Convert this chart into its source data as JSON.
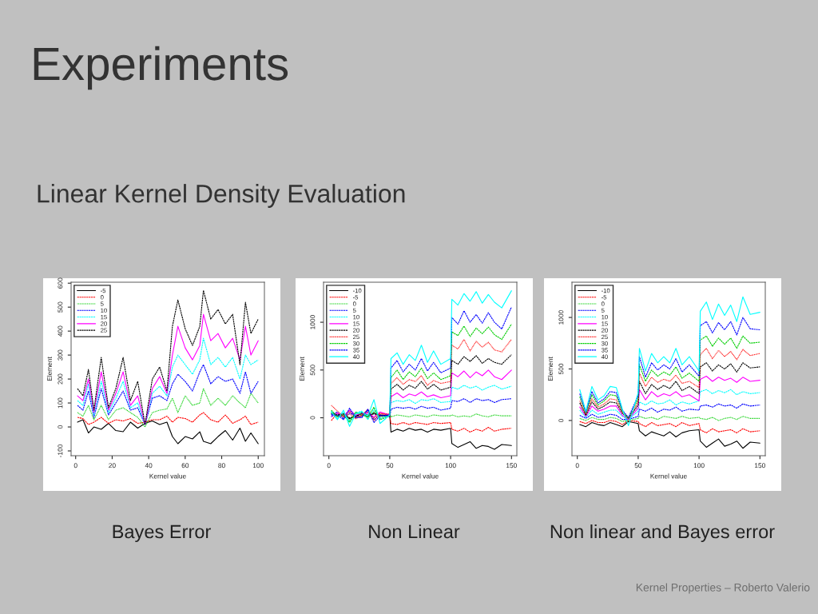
{
  "chart_data": [
    {
      "type": "line",
      "title": "Bayes Error",
      "xlabel": "Kernel value",
      "ylabel": "Element",
      "annotations": [
        "Experiments",
        "Linear Kernel Density Evaluation"
      ],
      "legend": "top left",
      "grid": false,
      "marker": "none",
      "xlim": [
        -2.5,
        103.4
      ],
      "ylim": [
        -120,
        604
      ],
      "xticks": [
        0,
        20,
        40,
        60,
        80,
        100
      ],
      "yticks": [
        -100,
        0,
        100,
        200,
        300,
        400,
        500,
        600
      ],
      "x": [
        1,
        4,
        7,
        10,
        14,
        18,
        22,
        26,
        30,
        34,
        38,
        42,
        46,
        50,
        53,
        56,
        60,
        64,
        68,
        70,
        74,
        78,
        82,
        86,
        90,
        93,
        96,
        100
      ],
      "series": [
        {
          "name": "-5",
          "color": "#000000",
          "line_style": "solid",
          "values": [
            20,
            30,
            -25,
            0,
            -10,
            15,
            -15,
            -20,
            20,
            -5,
            15,
            25,
            10,
            20,
            -40,
            -70,
            -40,
            -50,
            -20,
            -60,
            -70,
            -40,
            -15,
            -55,
            -5,
            -60,
            -25,
            -70
          ]
        },
        {
          "name": "0",
          "color": "#ff0000",
          "line_style": "dashed",
          "values": [
            40,
            35,
            10,
            20,
            40,
            15,
            30,
            25,
            35,
            15,
            20,
            30,
            30,
            45,
            20,
            40,
            35,
            20,
            50,
            60,
            30,
            20,
            50,
            15,
            30,
            45,
            10,
            20
          ]
        },
        {
          "name": "5",
          "color": "#00cd00",
          "line_style": "dotted",
          "values": [
            60,
            45,
            90,
            30,
            90,
            30,
            70,
            80,
            60,
            40,
            0,
            60,
            70,
            75,
            120,
            60,
            130,
            90,
            100,
            160,
            90,
            120,
            90,
            130,
            100,
            80,
            140,
            100
          ]
        },
        {
          "name": "10",
          "color": "#0000ff",
          "line_style": "dashed",
          "values": [
            90,
            70,
            150,
            40,
            160,
            50,
            100,
            150,
            70,
            80,
            10,
            120,
            130,
            110,
            180,
            220,
            190,
            150,
            230,
            260,
            180,
            210,
            190,
            200,
            140,
            230,
            140,
            190
          ]
        },
        {
          "name": "15",
          "color": "#00ffff",
          "line_style": "dashed",
          "values": [
            110,
            90,
            180,
            50,
            190,
            60,
            120,
            190,
            80,
            100,
            10,
            140,
            170,
            130,
            250,
            300,
            260,
            220,
            280,
            370,
            260,
            290,
            250,
            290,
            200,
            300,
            260,
            280
          ]
        },
        {
          "name": "20",
          "color": "#ff00ff",
          "line_style": "solid",
          "values": [
            130,
            110,
            200,
            60,
            230,
            70,
            140,
            230,
            90,
            130,
            10,
            160,
            210,
            140,
            300,
            420,
            330,
            280,
            340,
            470,
            360,
            390,
            330,
            370,
            280,
            420,
            300,
            360
          ]
        },
        {
          "name": "25",
          "color": "#000000",
          "line_style": "dashed",
          "values": [
            160,
            130,
            240,
            70,
            290,
            80,
            160,
            290,
            110,
            190,
            10,
            200,
            250,
            150,
            420,
            530,
            410,
            340,
            420,
            570,
            450,
            490,
            430,
            470,
            260,
            520,
            390,
            450
          ]
        }
      ]
    },
    {
      "type": "line",
      "title": "Non Linear",
      "xlabel": "Kernel value",
      "ylabel": "Element",
      "legend": "top left",
      "grid": false,
      "marker": "none",
      "xlim": [
        -4.4,
        154.4
      ],
      "ylim": [
        -397,
        1419
      ],
      "xticks": [
        0,
        50,
        100,
        150
      ],
      "yticks": [
        0,
        500,
        1000
      ],
      "x": [
        2,
        7,
        12,
        17,
        22,
        27,
        32,
        37,
        42,
        50,
        51,
        56,
        61,
        66,
        71,
        76,
        81,
        86,
        92,
        100,
        101,
        106,
        111,
        116,
        121,
        126,
        131,
        136,
        142,
        150
      ],
      "series": [
        {
          "name": "-10",
          "color": "#000000",
          "line_style": "solid",
          "values": [
            40,
            20,
            30,
            -10,
            20,
            40,
            10,
            50,
            20,
            30,
            -150,
            -120,
            -140,
            -110,
            -130,
            -120,
            -150,
            -120,
            -130,
            -110,
            -270,
            -310,
            -280,
            -250,
            -320,
            -290,
            -300,
            -330,
            -280,
            -290
          ]
        },
        {
          "name": "-5",
          "color": "#ff0000",
          "line_style": "dashed",
          "values": [
            -30,
            50,
            10,
            70,
            0,
            30,
            60,
            0,
            50,
            20,
            -60,
            -70,
            -50,
            -70,
            -50,
            -60,
            -70,
            -50,
            -60,
            -50,
            -120,
            -140,
            -110,
            -150,
            -120,
            -140,
            -100,
            -140,
            -120,
            -110
          ]
        },
        {
          "name": "0",
          "color": "#00cd00",
          "line_style": "dotted",
          "values": [
            60,
            0,
            50,
            -30,
            40,
            60,
            -10,
            70,
            0,
            40,
            10,
            30,
            20,
            10,
            30,
            20,
            10,
            30,
            20,
            20,
            30,
            10,
            20,
            10,
            40,
            20,
            10,
            30,
            20,
            20
          ]
        },
        {
          "name": "5",
          "color": "#0000ff",
          "line_style": "dashed",
          "values": [
            30,
            60,
            -10,
            50,
            20,
            10,
            80,
            -20,
            30,
            10,
            90,
            110,
            100,
            110,
            90,
            120,
            100,
            110,
            80,
            100,
            180,
            170,
            200,
            160,
            200,
            180,
            190,
            160,
            190,
            200
          ]
        },
        {
          "name": "10",
          "color": "#00ffff",
          "line_style": "dashed",
          "values": [
            70,
            -10,
            60,
            -40,
            50,
            70,
            -20,
            90,
            -10,
            30,
            160,
            180,
            170,
            190,
            150,
            190,
            180,
            200,
            160,
            170,
            320,
            300,
            340,
            310,
            330,
            290,
            320,
            340,
            300,
            330
          ]
        },
        {
          "name": "15",
          "color": "#ff00ff",
          "line_style": "solid",
          "values": [
            10,
            50,
            20,
            80,
            30,
            40,
            50,
            10,
            60,
            30,
            220,
            260,
            210,
            250,
            230,
            270,
            220,
            240,
            210,
            230,
            470,
            430,
            490,
            420,
            480,
            440,
            500,
            430,
            400,
            500
          ]
        },
        {
          "name": "20",
          "color": "#000000",
          "line_style": "dashed",
          "values": [
            50,
            30,
            40,
            0,
            10,
            50,
            30,
            40,
            30,
            20,
            300,
            350,
            290,
            340,
            310,
            380,
            300,
            350,
            290,
            320,
            600,
            560,
            640,
            590,
            650,
            570,
            620,
            580,
            560,
            660
          ]
        },
        {
          "name": "25",
          "color": "#ff0000",
          "line_style": "dotted",
          "values": [
            130,
            70,
            10,
            40,
            -10,
            20,
            90,
            -30,
            40,
            40,
            360,
            420,
            350,
            400,
            380,
            440,
            340,
            390,
            360,
            380,
            760,
            720,
            820,
            700,
            800,
            740,
            790,
            710,
            690,
            820
          ]
        },
        {
          "name": "30",
          "color": "#00cd00",
          "line_style": "dashed",
          "values": [
            80,
            10,
            30,
            -50,
            60,
            30,
            10,
            110,
            -20,
            20,
            420,
            500,
            400,
            480,
            430,
            520,
            410,
            470,
            400,
            440,
            900,
            860,
            960,
            850,
            940,
            880,
            950,
            870,
            820,
            980
          ]
        },
        {
          "name": "35",
          "color": "#0000ff",
          "line_style": "dashed",
          "values": [
            20,
            30,
            -20,
            100,
            0,
            0,
            90,
            -50,
            20,
            30,
            520,
            600,
            480,
            560,
            500,
            620,
            490,
            580,
            470,
            520,
            1050,
            980,
            1120,
            1000,
            1080,
            990,
            1100,
            1000,
            930,
            1160
          ]
        },
        {
          "name": "40",
          "color": "#00ffff",
          "line_style": "solid",
          "values": [
            60,
            -20,
            80,
            -90,
            40,
            60,
            20,
            190,
            -60,
            30,
            620,
            680,
            560,
            660,
            600,
            760,
            580,
            700,
            560,
            620,
            1240,
            1180,
            1300,
            1220,
            1320,
            1200,
            1290,
            1210,
            1150,
            1330
          ]
        }
      ]
    },
    {
      "type": "line",
      "title": "Non linear and Bayes error",
      "xlabel": "Kernel value",
      "ylabel": "Element",
      "annotations": [
        "Kernel Properties – Roberto Valerio"
      ],
      "legend": "top left",
      "grid": false,
      "marker": "none",
      "xlim": [
        -4.4,
        154.4
      ],
      "ylim": [
        -342,
        1342
      ],
      "xticks": [
        0,
        50,
        100,
        150
      ],
      "yticks": [
        0,
        500,
        1000
      ],
      "x": [
        2,
        7,
        12,
        17,
        22,
        27,
        32,
        37,
        42,
        50,
        51,
        56,
        61,
        66,
        71,
        76,
        81,
        86,
        92,
        100,
        101,
        106,
        111,
        116,
        121,
        126,
        131,
        136,
        142,
        150
      ],
      "series": [
        {
          "name": "-10",
          "color": "#000000",
          "line_style": "solid",
          "values": [
            -40,
            -60,
            -20,
            -40,
            -50,
            -20,
            -40,
            -60,
            -10,
            -30,
            -100,
            -150,
            -110,
            -130,
            -150,
            -110,
            -160,
            -120,
            -100,
            -90,
            -200,
            -260,
            -220,
            -180,
            -250,
            -230,
            -200,
            -270,
            -210,
            -220
          ]
        },
        {
          "name": "-5",
          "color": "#ff0000",
          "line_style": "dashed",
          "values": [
            -10,
            -30,
            0,
            -20,
            -20,
            0,
            -10,
            -40,
            0,
            -10,
            -30,
            -60,
            -20,
            -50,
            -40,
            -30,
            -60,
            -20,
            -50,
            -30,
            -90,
            -120,
            -80,
            -110,
            -100,
            -90,
            -120,
            -80,
            -110,
            -100
          ]
        },
        {
          "name": "0",
          "color": "#00cd00",
          "line_style": "dotted",
          "values": [
            20,
            0,
            30,
            10,
            10,
            30,
            20,
            -10,
            0,
            20,
            40,
            20,
            30,
            10,
            40,
            30,
            20,
            40,
            20,
            30,
            20,
            10,
            30,
            0,
            20,
            30,
            10,
            40,
            20,
            20
          ]
        },
        {
          "name": "5",
          "color": "#0000ff",
          "line_style": "dashed",
          "values": [
            50,
            20,
            60,
            30,
            40,
            60,
            50,
            10,
            10,
            40,
            110,
            90,
            120,
            80,
            110,
            100,
            130,
            90,
            110,
            100,
            140,
            150,
            130,
            160,
            140,
            150,
            120,
            160,
            140,
            150
          ]
        },
        {
          "name": "10",
          "color": "#00ffff",
          "line_style": "dashed",
          "values": [
            100,
            30,
            100,
            60,
            80,
            100,
            100,
            40,
            10,
            90,
            180,
            150,
            190,
            160,
            170,
            200,
            150,
            180,
            160,
            190,
            280,
            300,
            260,
            290,
            270,
            300,
            250,
            280,
            260,
            270
          ]
        },
        {
          "name": "15",
          "color": "#ff00ff",
          "line_style": "solid",
          "values": [
            130,
            40,
            140,
            90,
            110,
            140,
            140,
            50,
            10,
            120,
            300,
            200,
            280,
            230,
            260,
            240,
            280,
            230,
            250,
            190,
            400,
            430,
            380,
            420,
            390,
            410,
            370,
            420,
            380,
            390
          ]
        },
        {
          "name": "20",
          "color": "#000000",
          "line_style": "dashed",
          "values": [
            170,
            50,
            180,
            110,
            140,
            180,
            170,
            70,
            20,
            150,
            380,
            260,
            350,
            300,
            340,
            310,
            380,
            290,
            330,
            260,
            520,
            560,
            480,
            540,
            500,
            550,
            470,
            560,
            510,
            520
          ]
        },
        {
          "name": "25",
          "color": "#ff0000",
          "line_style": "dotted",
          "values": [
            190,
            60,
            210,
            130,
            160,
            210,
            200,
            80,
            20,
            180,
            460,
            330,
            420,
            370,
            400,
            380,
            440,
            360,
            380,
            320,
            640,
            700,
            600,
            680,
            620,
            670,
            590,
            690,
            630,
            650
          ]
        },
        {
          "name": "30",
          "color": "#00cd00",
          "line_style": "dashed",
          "values": [
            230,
            70,
            250,
            150,
            190,
            250,
            240,
            90,
            20,
            210,
            540,
            380,
            490,
            430,
            470,
            440,
            520,
            410,
            460,
            380,
            780,
            820,
            720,
            800,
            740,
            800,
            700,
            820,
            750,
            760
          ]
        },
        {
          "name": "35",
          "color": "#0000ff",
          "line_style": "dashed",
          "values": [
            260,
            80,
            280,
            170,
            210,
            280,
            270,
            100,
            30,
            240,
            620,
            420,
            560,
            490,
            540,
            500,
            600,
            470,
            540,
            430,
            920,
            960,
            850,
            950,
            880,
            960,
            830,
            1000,
            890,
            880
          ]
        },
        {
          "name": "40",
          "color": "#00ffff",
          "line_style": "solid",
          "values": [
            300,
            90,
            330,
            200,
            240,
            330,
            320,
            110,
            -50,
            270,
            700,
            480,
            650,
            560,
            620,
            560,
            700,
            540,
            620,
            480,
            1060,
            1150,
            980,
            1130,
            1020,
            1120,
            960,
            1200,
            1030,
            1050
          ]
        }
      ]
    }
  ]
}
